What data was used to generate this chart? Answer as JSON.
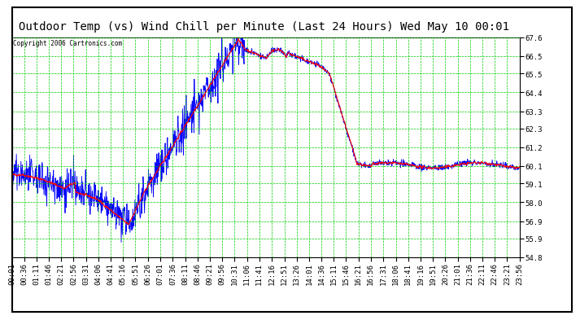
{
  "title": "Outdoor Temp (vs) Wind Chill per Minute (Last 24 Hours) Wed May 10 00:01",
  "copyright": "Copyright 2006 Cartronics.com",
  "ylabel_right": [
    "67.6",
    "66.5",
    "65.5",
    "64.4",
    "63.3",
    "62.3",
    "61.2",
    "60.1",
    "59.1",
    "58.0",
    "56.9",
    "55.9",
    "54.8"
  ],
  "ymin": 54.8,
  "ymax": 67.6,
  "background_color": "#ffffff",
  "plot_bg_color": "#ffffff",
  "grid_color": "#00cc00",
  "line_color_red": "#ff0000",
  "line_color_blue": "#0000ff",
  "title_fontsize": 10,
  "tick_fontsize": 6.5,
  "xtick_labels": [
    "00:01",
    "00:36",
    "01:11",
    "01:46",
    "02:21",
    "02:56",
    "03:31",
    "04:06",
    "04:41",
    "05:16",
    "05:51",
    "06:26",
    "07:01",
    "07:36",
    "08:11",
    "08:46",
    "09:21",
    "09:56",
    "10:31",
    "11:06",
    "11:41",
    "12:16",
    "12:51",
    "13:26",
    "14:01",
    "14:36",
    "15:11",
    "15:46",
    "16:21",
    "16:56",
    "17:31",
    "18:06",
    "18:41",
    "19:16",
    "19:51",
    "20:26",
    "21:01",
    "21:36",
    "22:11",
    "22:46",
    "23:21",
    "23:56"
  ]
}
